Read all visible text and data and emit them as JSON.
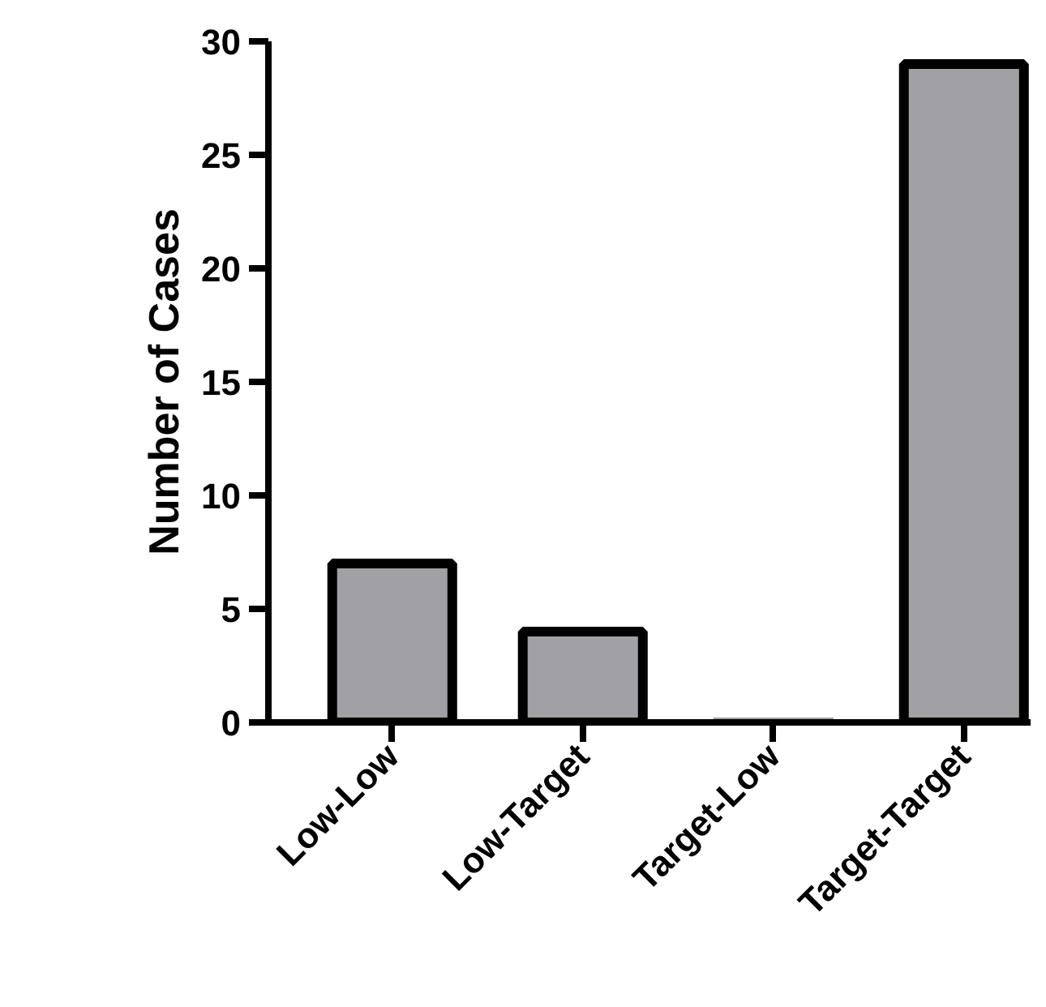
{
  "chart_data": {
    "type": "bar",
    "ylabel": "Number of Cases",
    "categories": [
      "Low-Low",
      "Low-Target",
      "Target-Low",
      "Target-Target"
    ],
    "values": [
      7,
      4,
      0,
      29
    ],
    "color": "#a0a0a5",
    "ylim": [
      0,
      30
    ],
    "yticks": [
      0,
      5,
      10,
      15,
      20,
      25,
      30
    ],
    "grid": false
  }
}
